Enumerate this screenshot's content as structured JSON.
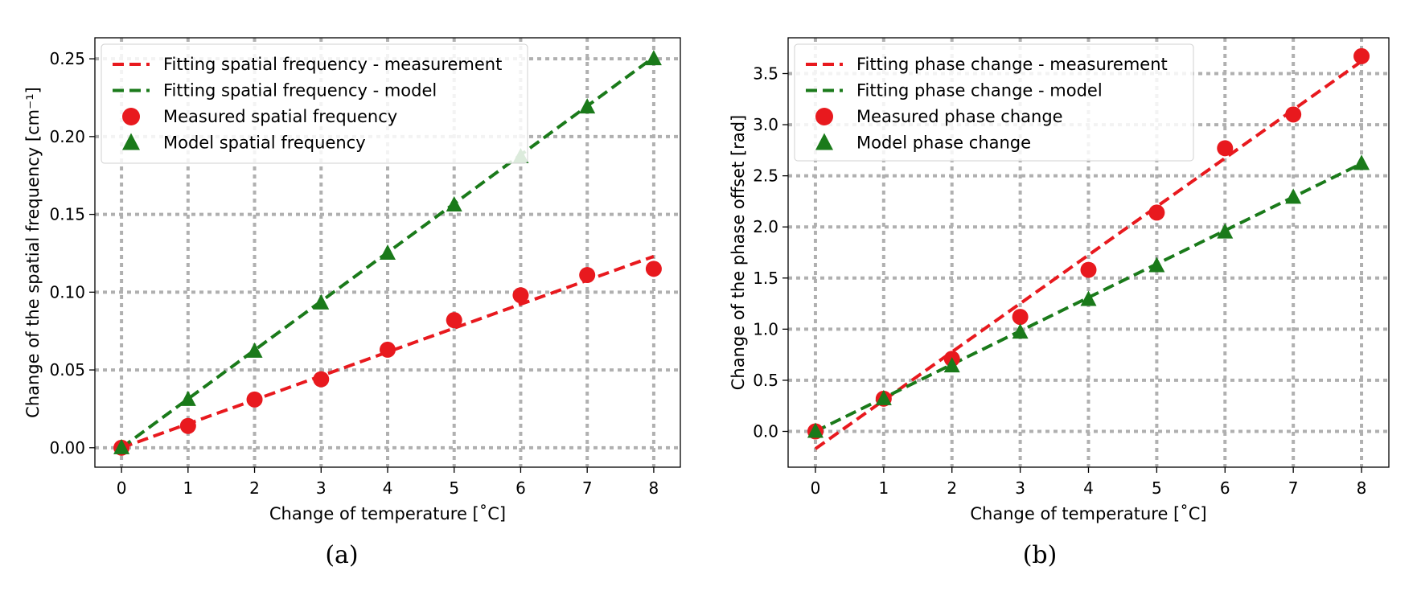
{
  "chart_data": [
    {
      "type": "line",
      "panel_label": "(a)",
      "xlabel": "Change of temperature [˚C]",
      "ylabel": "Change of the spatial frequency [cm⁻¹]",
      "xlim": [
        -0.4,
        8.4
      ],
      "ylim": [
        -0.0125,
        0.2635
      ],
      "x_ticks": [
        0,
        1,
        2,
        3,
        4,
        5,
        6,
        7,
        8
      ],
      "y_ticks": [
        0.0,
        0.05,
        0.1,
        0.15,
        0.2,
        0.25
      ],
      "y_tick_labels": [
        "0.00",
        "0.05",
        "0.10",
        "0.15",
        "0.20",
        "0.25"
      ],
      "grid": true,
      "legend_position": "upper-left",
      "series": [
        {
          "name": "Fitting spatial frequency - measurement",
          "style": "dashed-line",
          "color": "#e8191e",
          "x": [
            0,
            8
          ],
          "y": [
            0.0,
            0.123
          ]
        },
        {
          "name": "Fitting spatial frequency - model",
          "style": "dashed-line",
          "color": "#1a7a1a",
          "x": [
            0,
            8
          ],
          "y": [
            0.0,
            0.251
          ]
        },
        {
          "name": "Measured spatial frequency",
          "style": "circle-markers",
          "color": "#e8191e",
          "x": [
            0,
            1,
            2,
            3,
            4,
            5,
            6,
            7,
            8
          ],
          "y": [
            0.0,
            0.014,
            0.031,
            0.044,
            0.063,
            0.082,
            0.098,
            0.111,
            0.115
          ]
        },
        {
          "name": "Model spatial frequency",
          "style": "triangle-markers",
          "color": "#1a7a1a",
          "x": [
            0,
            1,
            2,
            3,
            4,
            5,
            6,
            7,
            8
          ],
          "y": [
            0.0,
            0.031,
            0.062,
            0.093,
            0.125,
            0.156,
            0.187,
            0.219,
            0.25
          ]
        }
      ]
    },
    {
      "type": "line",
      "panel_label": "(b)",
      "xlabel": "Change of temperature [˚C]",
      "ylabel": "Change of the phase offset [rad]",
      "xlim": [
        -0.4,
        8.4
      ],
      "ylim": [
        -0.35,
        3.85
      ],
      "x_ticks": [
        0,
        1,
        2,
        3,
        4,
        5,
        6,
        7,
        8
      ],
      "y_ticks": [
        0.0,
        0.5,
        1.0,
        1.5,
        2.0,
        2.5,
        3.0,
        3.5
      ],
      "y_tick_labels": [
        "0.0",
        "0.5",
        "1.0",
        "1.5",
        "2.0",
        "2.5",
        "3.0",
        "3.5"
      ],
      "grid": true,
      "legend_position": "upper-left",
      "series": [
        {
          "name": "Fitting phase change - measurement",
          "style": "dashed-line",
          "color": "#e8191e",
          "x": [
            0,
            8
          ],
          "y": [
            -0.17,
            3.62
          ]
        },
        {
          "name": "Fitting phase change - model",
          "style": "dashed-line",
          "color": "#1a7a1a",
          "x": [
            0,
            8
          ],
          "y": [
            0.0,
            2.62
          ]
        },
        {
          "name": "Measured phase change",
          "style": "circle-markers",
          "color": "#e8191e",
          "x": [
            0,
            1,
            2,
            3,
            4,
            5,
            6,
            7,
            8
          ],
          "y": [
            0.0,
            0.32,
            0.71,
            1.12,
            1.58,
            2.14,
            2.77,
            3.1,
            3.67
          ]
        },
        {
          "name": "Model phase change",
          "style": "triangle-markers",
          "color": "#1a7a1a",
          "x": [
            0,
            1,
            2,
            3,
            4,
            5,
            6,
            7,
            8
          ],
          "y": [
            0.0,
            0.32,
            0.64,
            0.97,
            1.29,
            1.62,
            1.95,
            2.29,
            2.62
          ]
        }
      ]
    }
  ]
}
